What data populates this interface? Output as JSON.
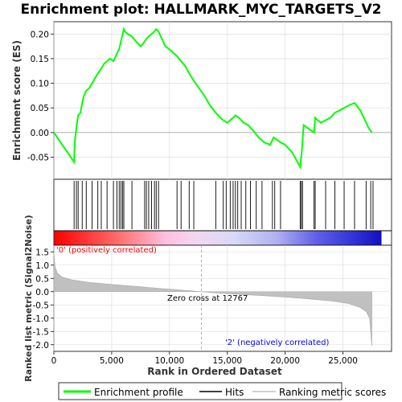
{
  "chart_data": {
    "type": "line",
    "title": "Enrichment plot: HALLMARK_MYC_TARGETS_V2",
    "panels": [
      {
        "name": "enrichment",
        "ylabel": "Enrichment score (ES)",
        "ylim": [
          -0.095,
          0.225
        ],
        "yticks": [
          -0.05,
          0.0,
          0.05,
          0.1,
          0.15,
          0.2
        ],
        "ytick_labels": [
          "-0.05",
          "0.00",
          "0.05",
          "0.10",
          "0.15",
          "0.20"
        ],
        "grid": true
      },
      {
        "name": "ranked-metric",
        "ylabel": "Ranked list metric (Signal2Noise)",
        "ylim": [
          -2.25,
          1.75
        ],
        "yticks": [
          -2.0,
          -1.5,
          -1.0,
          -0.5,
          0.0,
          0.5,
          1.0,
          1.5
        ],
        "ytick_labels": [
          "-2.0",
          "-1.5",
          "-1.0",
          "-0.5",
          "0.0",
          "0.5",
          "1.0",
          "1.5"
        ],
        "grid": true
      }
    ],
    "xlabel": "Rank in Ordered Dataset",
    "xlim": [
      0,
      29200
    ],
    "xticks": [
      0,
      5000,
      10000,
      15000,
      20000,
      25000
    ],
    "xtick_labels": [
      "0",
      "5,000",
      "10,000",
      "15,000",
      "20,000",
      "25,000"
    ],
    "series": [
      {
        "name": "Enrichment profile",
        "color": "#00ff00",
        "x": [
          0,
          1750,
          1800,
          1950,
          2100,
          2300,
          2450,
          2600,
          2800,
          3050,
          3300,
          3550,
          3800,
          4100,
          4350,
          4600,
          4850,
          5150,
          5450,
          5650,
          5800,
          5950,
          6050,
          6150,
          6400,
          6750,
          7100,
          7500,
          7700,
          7850,
          8000,
          8200,
          8450,
          8700,
          8850,
          9050,
          9250,
          9450,
          9650,
          10200,
          10650,
          11000,
          11350,
          11700,
          12100,
          12400,
          13000,
          13500,
          14000,
          14400,
          14650,
          15000,
          15250,
          15500,
          15700,
          16000,
          16400,
          16800,
          17200,
          17700,
          18200,
          18700,
          19000,
          19300,
          19600,
          20000,
          20600,
          21300,
          21450,
          21600,
          22200,
          22500,
          22600,
          22800,
          23100,
          23500,
          23900,
          24300,
          24700,
          25100,
          25500,
          26000,
          26500,
          27000,
          27200,
          27500
        ],
        "y": [
          0.0,
          -0.06,
          -0.02,
          0.01,
          0.035,
          0.04,
          0.06,
          0.075,
          0.085,
          0.09,
          0.1,
          0.11,
          0.12,
          0.13,
          0.14,
          0.145,
          0.15,
          0.145,
          0.16,
          0.17,
          0.185,
          0.2,
          0.21,
          0.205,
          0.2,
          0.195,
          0.185,
          0.175,
          0.18,
          0.185,
          0.19,
          0.195,
          0.2,
          0.205,
          0.21,
          0.205,
          0.195,
          0.185,
          0.175,
          0.165,
          0.155,
          0.145,
          0.135,
          0.12,
          0.105,
          0.095,
          0.075,
          0.055,
          0.04,
          0.03,
          0.025,
          0.02,
          0.025,
          0.03,
          0.035,
          0.03,
          0.02,
          0.015,
          0.005,
          -0.01,
          -0.02,
          -0.025,
          -0.01,
          -0.015,
          -0.02,
          -0.025,
          -0.04,
          -0.07,
          -0.035,
          0.015,
          0.005,
          0.0,
          0.03,
          0.025,
          0.02,
          0.025,
          0.03,
          0.04,
          0.045,
          0.05,
          0.055,
          0.06,
          0.045,
          0.02,
          0.01,
          0.0
        ]
      },
      {
        "name": "Hits",
        "color": "#000000",
        "positions": [
          1750,
          1950,
          2100,
          2450,
          2800,
          3300,
          3800,
          4100,
          4600,
          5150,
          5450,
          5650,
          5800,
          5950,
          6050,
          6750,
          7850,
          8000,
          8200,
          8450,
          8700,
          8850,
          9050,
          10650,
          11000,
          11700,
          12100,
          14000,
          14650,
          14900,
          15250,
          15500,
          15700,
          15900,
          16200,
          16600,
          17000,
          17500,
          18000,
          18900,
          19100,
          19600,
          21300,
          21400,
          21500,
          22500,
          22600,
          23500,
          24300,
          25100,
          26000,
          27000,
          27400,
          27600
        ]
      },
      {
        "name": "Ranking metric scores",
        "color": "#c0c0c0",
        "x": [
          0,
          100,
          300,
          700,
          1500,
          3000,
          5000,
          7000,
          9000,
          11000,
          12767,
          14000,
          16000,
          18000,
          20000,
          22000,
          24000,
          25500,
          26500,
          27000,
          27300,
          27500
        ],
        "y": [
          1.5,
          0.95,
          0.7,
          0.55,
          0.45,
          0.35,
          0.27,
          0.2,
          0.13,
          0.06,
          0.0,
          -0.05,
          -0.1,
          -0.15,
          -0.2,
          -0.27,
          -0.35,
          -0.45,
          -0.6,
          -0.75,
          -1.0,
          -2.05
        ]
      }
    ],
    "zero_cross_rank": 12767,
    "annotations": [
      {
        "text": "'0' (positively correlated)",
        "color": "#ff0000"
      },
      {
        "text": "Zero cross at 12767",
        "color": "#000000"
      },
      {
        "text": "'2' (negatively correlated)",
        "color": "#0000ff"
      }
    ],
    "legend": {
      "placement": "bottom",
      "entries": [
        "Enrichment profile",
        "Hits",
        "Ranking metric scores"
      ]
    }
  }
}
